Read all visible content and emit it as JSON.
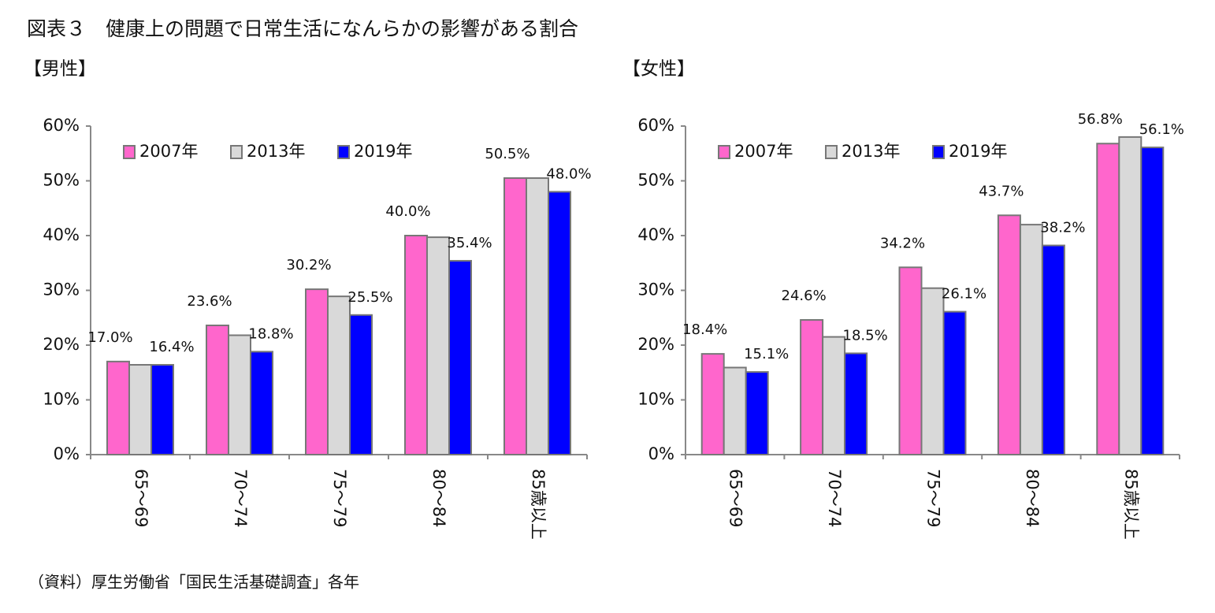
{
  "title": "図表３　健康上の問題で日常生活になんらかの影響がある割合",
  "source": "（資料）厚生労働省「国民生活基礎調査」各年",
  "chart_data": [
    {
      "type": "bar",
      "title": "【男性】",
      "categories": [
        "65～69",
        "70～74",
        "75～79",
        "80～84",
        "85歳以上"
      ],
      "series": [
        {
          "name": "2007年",
          "color": "#ff66cc",
          "values": [
            17.0,
            23.6,
            30.2,
            40.0,
            50.5
          ],
          "value_labels": [
            "17.0%",
            "23.6%",
            "30.2%",
            "40.0%",
            "50.5%"
          ]
        },
        {
          "name": "2013年",
          "color": "#d9d9d9",
          "values": [
            16.4,
            21.8,
            28.9,
            39.7,
            50.5
          ]
        },
        {
          "name": "2019年",
          "color": "#0000ff",
          "values": [
            16.4,
            18.8,
            25.5,
            35.4,
            48.0
          ],
          "value_labels": [
            "16.4%",
            "18.8%",
            "25.5%",
            "35.4%",
            "48.0%"
          ]
        }
      ],
      "ylim": [
        0,
        60
      ],
      "yticks": [
        {
          "value": 0,
          "label": "0%"
        },
        {
          "value": 10,
          "label": "10%"
        },
        {
          "value": 20,
          "label": "20%"
        },
        {
          "value": 30,
          "label": "30%"
        },
        {
          "value": 40,
          "label": "40%"
        },
        {
          "value": 50,
          "label": "50%"
        },
        {
          "value": 60,
          "label": "60%"
        }
      ],
      "legend": "upper left",
      "grid": false
    },
    {
      "type": "bar",
      "title": "【女性】",
      "categories": [
        "65～69",
        "70～74",
        "75～79",
        "80～84",
        "85歳以上"
      ],
      "series": [
        {
          "name": "2007年",
          "color": "#ff66cc",
          "values": [
            18.4,
            24.6,
            34.2,
            43.7,
            56.8
          ],
          "value_labels": [
            "18.4%",
            "24.6%",
            "34.2%",
            "43.7%",
            "56.8%"
          ]
        },
        {
          "name": "2013年",
          "color": "#d9d9d9",
          "values": [
            15.9,
            21.5,
            30.4,
            42.0,
            58.0
          ]
        },
        {
          "name": "2019年",
          "color": "#0000ff",
          "values": [
            15.1,
            18.5,
            26.1,
            38.2,
            56.1
          ],
          "value_labels": [
            "15.1%",
            "18.5%",
            "26.1%",
            "38.2%",
            "56.1%"
          ]
        }
      ],
      "ylim": [
        0,
        60
      ],
      "yticks": [
        {
          "value": 0,
          "label": "0%"
        },
        {
          "value": 10,
          "label": "10%"
        },
        {
          "value": 20,
          "label": "20%"
        },
        {
          "value": 30,
          "label": "30%"
        },
        {
          "value": 40,
          "label": "40%"
        },
        {
          "value": 50,
          "label": "50%"
        },
        {
          "value": 60,
          "label": "60%"
        }
      ],
      "legend": "upper left",
      "grid": false
    }
  ]
}
